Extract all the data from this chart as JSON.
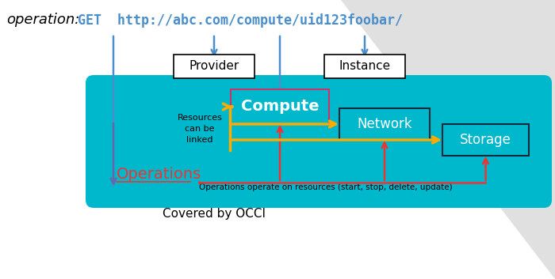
{
  "title_italic": "operation:",
  "title_url": "GET  http://abc.com/compute/uid123foobar/",
  "title_url_color": "#4a8fcc",
  "title_fontsize": 13,
  "bg_box_color": "#00b8cc",
  "provider_label": "Provider",
  "instance_label": "Instance",
  "compute_label": "Compute",
  "network_label": "Network",
  "storage_label": "Storage",
  "operations_label": "Operations",
  "resources_linked_label": "Resources\ncan be\nlinked",
  "operations_note": "Operations operate on resources (start, stop, delete, update)",
  "covered_label": "Covered by OCCI",
  "arrow_blue_color": "#4a8fcc",
  "arrow_yellow_color": "#ffaa00",
  "arrow_red_color": "#ee3333",
  "arrow_purple_color": "#6666aa",
  "box_compute_border": "#cc3366",
  "box_network_border": "#1a2a3a",
  "box_storage_border": "#1a2a3a",
  "background_color": "#ffffff",
  "triangle_color": "#e0e0e0"
}
